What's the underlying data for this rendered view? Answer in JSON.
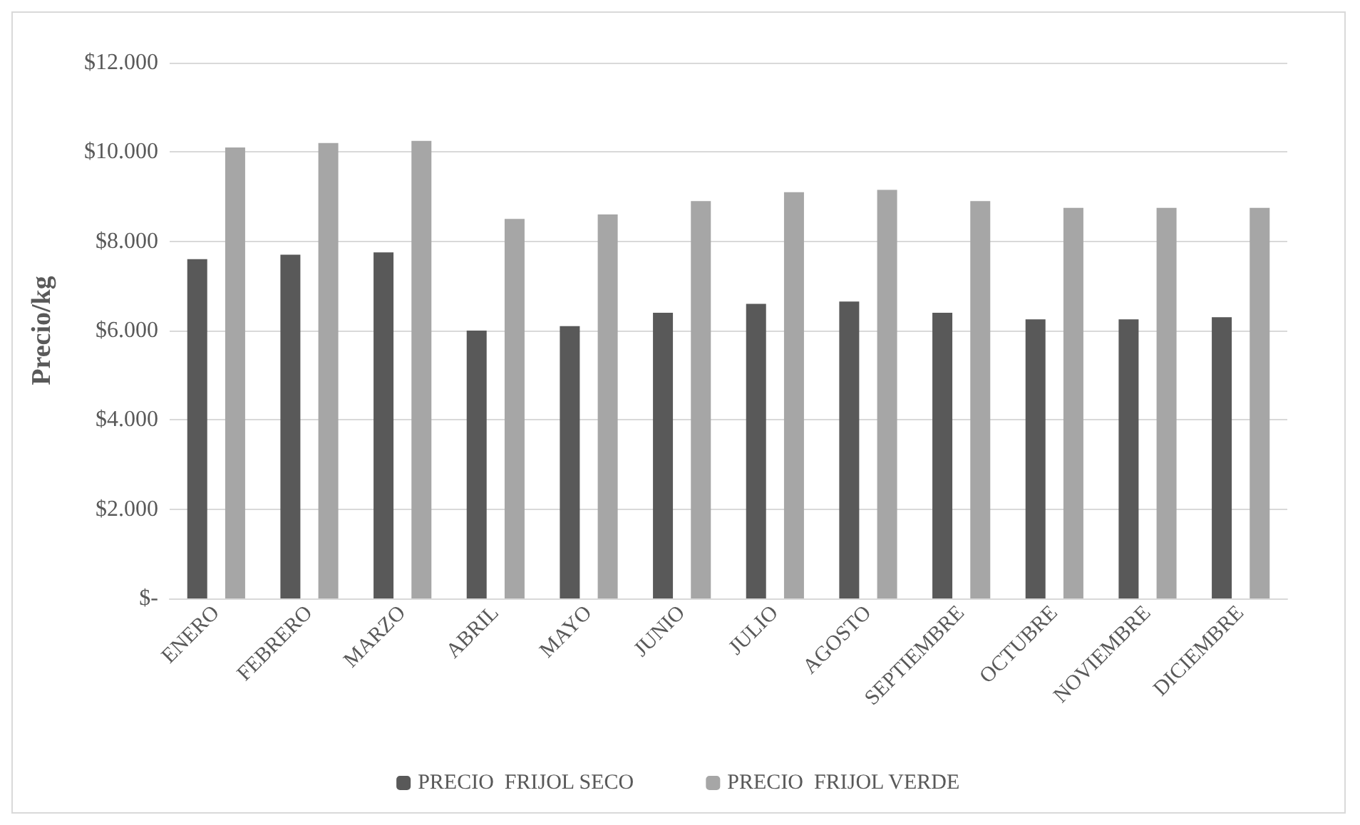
{
  "chart_data": {
    "type": "bar",
    "ylabel": "Precio/kg",
    "categories": [
      "ENERO",
      "FEBRERO",
      "MARZO",
      "ABRIL",
      "MAYO",
      "JUNIO",
      "JULIO",
      "AGOSTO",
      "SEPTIEMBRE",
      "OCTUBRE",
      "NOVIEMBRE",
      "DICIEMBRE"
    ],
    "series": [
      {
        "name": "PRECIO  FRIJOL SECO",
        "color": "#595959",
        "values": [
          7600,
          7700,
          7750,
          6000,
          6100,
          6400,
          6600,
          6650,
          6400,
          6250,
          6250,
          6300
        ]
      },
      {
        "name": "PRECIO  FRIJOL VERDE",
        "color": "#a6a6a6",
        "values": [
          10100,
          10200,
          10250,
          8500,
          8600,
          8900,
          9100,
          9150,
          8900,
          8750,
          8750,
          8750
        ]
      }
    ],
    "ylim": [
      0,
      12000
    ],
    "yticks": [
      {
        "value": 0,
        "label": "$-"
      },
      {
        "value": 2000,
        "label": "$2.000"
      },
      {
        "value": 4000,
        "label": "$4.000"
      },
      {
        "value": 6000,
        "label": "$6.000"
      },
      {
        "value": 8000,
        "label": "$8.000"
      },
      {
        "value": 10000,
        "label": "$10.000"
      },
      {
        "value": 12000,
        "label": "$12.000"
      }
    ],
    "grid": "y",
    "legend": "bottom"
  }
}
